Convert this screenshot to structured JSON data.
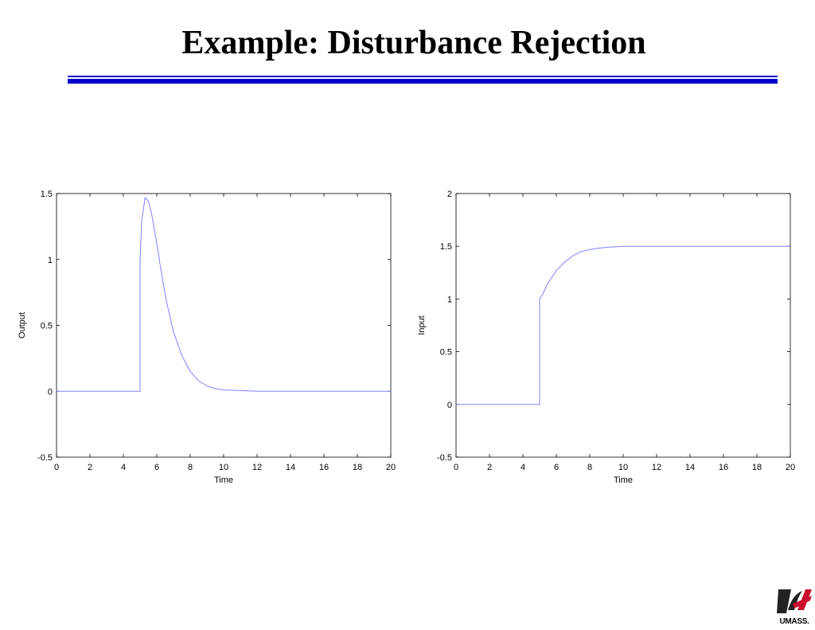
{
  "slide": {
    "title": "Example: Disturbance Rejection"
  },
  "colors": {
    "rule": "#0000cc",
    "series": "#8080ff",
    "logo_red": "#c8102e",
    "logo_dark": "#222222"
  },
  "logo": {
    "text": "UMASS.",
    "icon": "umass-logo-icon"
  },
  "chart_data": [
    {
      "type": "line",
      "title": "",
      "xlabel": "Time",
      "ylabel": "Output",
      "xlim": [
        0,
        20
      ],
      "ylim": [
        -0.5,
        1.5
      ],
      "xticks": [
        0,
        2,
        4,
        6,
        8,
        10,
        12,
        14,
        16,
        18,
        20
      ],
      "yticks": [
        -0.5,
        0,
        0.5,
        1,
        1.5
      ],
      "xtick_labels": [
        "0",
        "2",
        "4",
        "6",
        "8",
        "10",
        "12",
        "14",
        "16",
        "18",
        "20"
      ],
      "ytick_labels": [
        "-0.5",
        "0",
        "0.5",
        "1",
        "1.5"
      ],
      "grid": false,
      "series": [
        {
          "x": [
            0,
            5,
            5,
            5.1,
            5.3,
            5.5,
            5.7,
            6,
            6.3,
            6.6,
            7,
            7.5,
            8,
            8.5,
            9,
            9.5,
            10,
            11,
            12,
            13,
            20
          ],
          "y": [
            0,
            0,
            1.0,
            1.3,
            1.47,
            1.44,
            1.34,
            1.12,
            0.88,
            0.67,
            0.45,
            0.27,
            0.15,
            0.08,
            0.04,
            0.02,
            0.01,
            0.005,
            0,
            0,
            0
          ]
        }
      ]
    },
    {
      "type": "line",
      "title": "",
      "xlabel": "Time",
      "ylabel": "Input",
      "xlim": [
        0,
        20
      ],
      "ylim": [
        -0.5,
        2
      ],
      "xticks": [
        0,
        2,
        4,
        6,
        8,
        10,
        12,
        14,
        16,
        18,
        20
      ],
      "yticks": [
        -0.5,
        0,
        0.5,
        1,
        1.5,
        2
      ],
      "xtick_labels": [
        "0",
        "2",
        "4",
        "6",
        "8",
        "10",
        "12",
        "14",
        "16",
        "18",
        "20"
      ],
      "ytick_labels": [
        "-0.5",
        "0",
        "0.5",
        "1",
        "1.5",
        "2"
      ],
      "grid": false,
      "series": [
        {
          "x": [
            0,
            5,
            5,
            5.2,
            5.5,
            6,
            6.5,
            7,
            7.5,
            8,
            8.5,
            9,
            10,
            11,
            12,
            20
          ],
          "y": [
            0,
            0,
            1.0,
            1.05,
            1.15,
            1.27,
            1.35,
            1.41,
            1.45,
            1.47,
            1.48,
            1.49,
            1.5,
            1.5,
            1.5,
            1.5
          ]
        }
      ]
    }
  ]
}
